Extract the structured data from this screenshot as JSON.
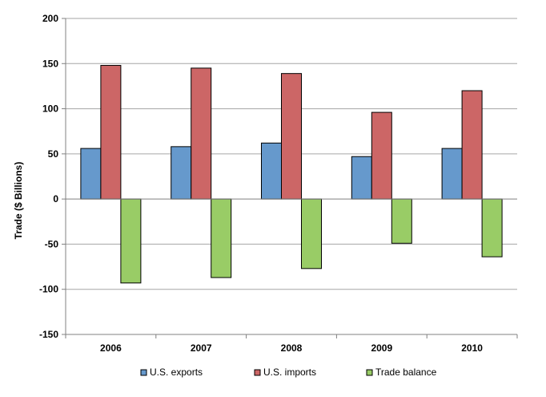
{
  "chart_data": {
    "type": "bar",
    "categories": [
      "2006",
      "2007",
      "2008",
      "2009",
      "2010"
    ],
    "series": [
      {
        "name": "U.S. exports",
        "color": "#6699cc",
        "values": [
          56,
          58,
          62,
          47,
          56
        ]
      },
      {
        "name": "U.S. imports",
        "color": "#cc6666",
        "values": [
          148,
          145,
          139,
          96,
          120
        ]
      },
      {
        "name": "Trade balance",
        "color": "#99cc66",
        "values": [
          -93,
          -87,
          -77,
          -49,
          -64
        ]
      }
    ],
    "ylabel": "Trade ($ Billions)",
    "ylim": [
      -150,
      200
    ],
    "yticks": [
      "200",
      "150",
      "100",
      "50",
      "0",
      "-50",
      "-100",
      "-150"
    ],
    "grid": true,
    "legend_position": "bottom"
  }
}
